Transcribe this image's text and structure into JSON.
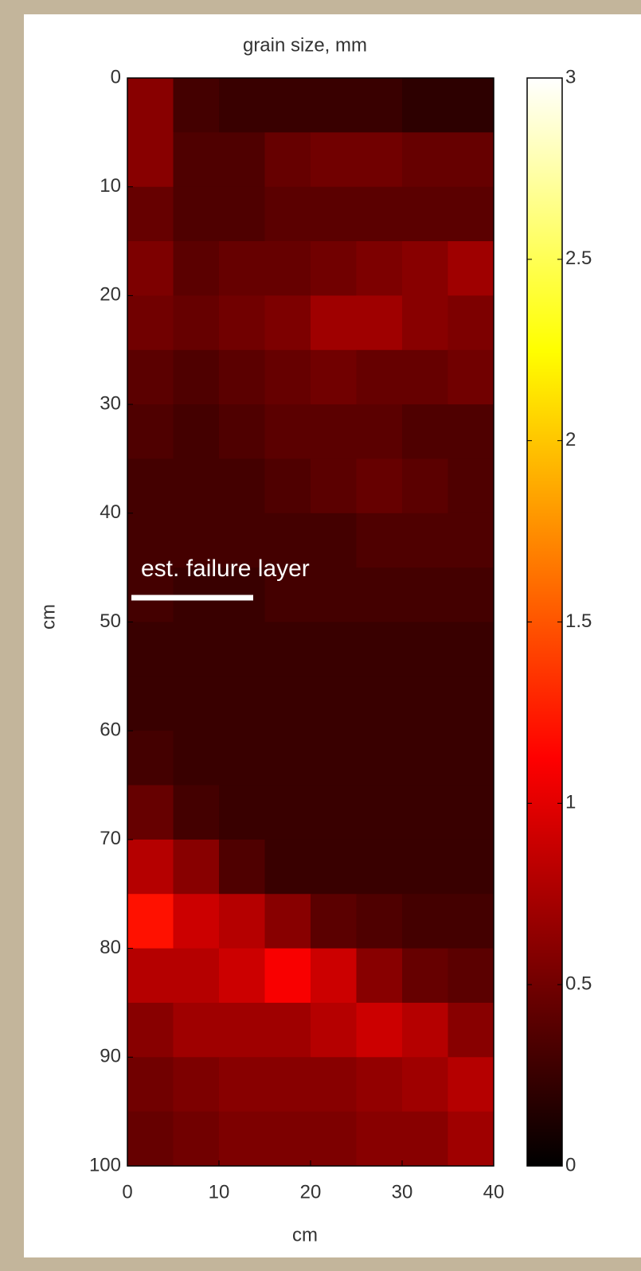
{
  "chart_data": {
    "type": "heatmap",
    "title": "grain size, mm",
    "xlabel": "cm",
    "ylabel": "cm",
    "colormap": "hot",
    "x": [
      2.5,
      7.5,
      12.5,
      17.5,
      22.5,
      27.5,
      32.5,
      37.5
    ],
    "y": [
      2.5,
      7.5,
      12.5,
      17.5,
      22.5,
      27.5,
      32.5,
      37.5,
      42.5,
      47.5,
      52.5,
      57.5,
      62.5,
      67.5,
      72.5,
      77.5,
      82.5,
      87.5,
      92.5,
      97.5
    ],
    "z": [
      [
        0.6,
        0.3,
        0.25,
        0.25,
        0.25,
        0.25,
        0.2,
        0.2
      ],
      [
        0.6,
        0.35,
        0.35,
        0.45,
        0.5,
        0.5,
        0.45,
        0.45
      ],
      [
        0.45,
        0.35,
        0.35,
        0.4,
        0.4,
        0.4,
        0.4,
        0.4
      ],
      [
        0.55,
        0.4,
        0.45,
        0.45,
        0.5,
        0.55,
        0.6,
        0.7
      ],
      [
        0.5,
        0.45,
        0.5,
        0.55,
        0.7,
        0.7,
        0.6,
        0.55
      ],
      [
        0.4,
        0.35,
        0.4,
        0.45,
        0.5,
        0.45,
        0.45,
        0.5
      ],
      [
        0.35,
        0.3,
        0.35,
        0.4,
        0.4,
        0.4,
        0.35,
        0.35
      ],
      [
        0.3,
        0.3,
        0.3,
        0.35,
        0.4,
        0.45,
        0.4,
        0.35
      ],
      [
        0.3,
        0.3,
        0.3,
        0.3,
        0.3,
        0.35,
        0.35,
        0.35
      ],
      [
        0.3,
        0.25,
        0.25,
        0.3,
        0.3,
        0.3,
        0.3,
        0.3
      ],
      [
        0.25,
        0.25,
        0.25,
        0.25,
        0.25,
        0.25,
        0.25,
        0.25
      ],
      [
        0.25,
        0.25,
        0.25,
        0.25,
        0.25,
        0.25,
        0.25,
        0.25
      ],
      [
        0.3,
        0.25,
        0.25,
        0.25,
        0.25,
        0.25,
        0.25,
        0.25
      ],
      [
        0.45,
        0.3,
        0.25,
        0.25,
        0.25,
        0.25,
        0.25,
        0.25
      ],
      [
        0.8,
        0.6,
        0.35,
        0.25,
        0.25,
        0.25,
        0.25,
        0.25
      ],
      [
        1.2,
        0.9,
        0.8,
        0.6,
        0.4,
        0.35,
        0.3,
        0.3
      ],
      [
        0.8,
        0.8,
        0.9,
        1.1,
        0.9,
        0.6,
        0.45,
        0.4
      ],
      [
        0.6,
        0.7,
        0.7,
        0.7,
        0.8,
        0.9,
        0.8,
        0.6
      ],
      [
        0.5,
        0.55,
        0.6,
        0.6,
        0.6,
        0.65,
        0.7,
        0.8
      ],
      [
        0.45,
        0.5,
        0.55,
        0.55,
        0.55,
        0.6,
        0.6,
        0.7
      ]
    ],
    "xlim": [
      0,
      40
    ],
    "xticks": [
      0,
      10,
      20,
      30,
      40
    ],
    "ylim": [
      0,
      100
    ],
    "yticks": [
      0,
      10,
      20,
      30,
      40,
      50,
      60,
      70,
      80,
      90,
      100
    ],
    "clim": [
      0,
      3
    ],
    "cticks": [
      0,
      0.5,
      1,
      1.5,
      2,
      2.5,
      3
    ],
    "annotation": "est. failure layer"
  }
}
